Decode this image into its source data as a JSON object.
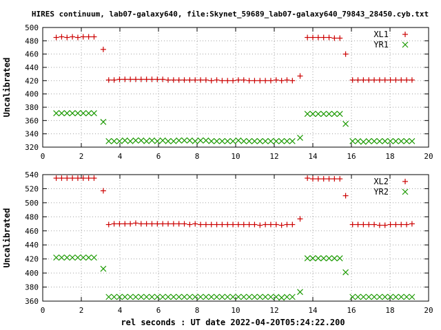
{
  "title": "HIRES continuum, lab07-galaxy640, file:Skynet_59689_lab07-galaxy640_79843_28450.cyb.txt",
  "xlabel": "rel seconds : UT date 2022-04-20T05:24:22.200",
  "colors": {
    "series1": "#cc0000",
    "series2": "#1a9900",
    "axis": "#000000",
    "grid": "#a0a0a0"
  },
  "chart_data": [
    {
      "type": "scatter",
      "ylabel": "Uncalibrated",
      "xlim": [
        0,
        20
      ],
      "ylim": [
        320,
        500
      ],
      "xticks": [
        0,
        2,
        4,
        6,
        8,
        10,
        12,
        14,
        16,
        18,
        20
      ],
      "yticks": [
        320,
        340,
        360,
        380,
        400,
        420,
        440,
        460,
        480,
        500
      ],
      "grid": true,
      "legend_position": "top-right",
      "x": [
        0.7,
        0.98,
        1.26,
        1.54,
        1.82,
        2.1,
        2.38,
        2.66,
        3.14,
        3.42,
        3.7,
        3.98,
        4.26,
        4.54,
        4.82,
        5.1,
        5.38,
        5.66,
        5.94,
        6.22,
        6.5,
        6.78,
        7.06,
        7.34,
        7.62,
        7.9,
        8.18,
        8.46,
        8.74,
        9.02,
        9.3,
        9.58,
        9.86,
        10.14,
        10.42,
        10.7,
        10.98,
        11.26,
        11.54,
        11.82,
        12.1,
        12.38,
        12.66,
        12.94,
        13.34,
        13.72,
        14.0,
        14.28,
        14.56,
        14.84,
        15.12,
        15.4,
        15.7,
        16.06,
        16.34,
        16.62,
        16.9,
        17.18,
        17.46,
        17.74,
        18.02,
        18.3,
        18.58,
        18.86,
        19.14
      ],
      "series": [
        {
          "name": "XL1",
          "marker": "plus",
          "values": [
            485,
            486,
            485,
            486,
            485,
            486,
            486,
            486,
            467,
            421,
            421,
            422,
            422,
            422,
            422,
            422,
            422,
            422,
            422,
            422,
            421,
            421,
            421,
            421,
            421,
            421,
            421,
            421,
            420,
            421,
            420,
            420,
            420,
            421,
            421,
            420,
            420,
            420,
            420,
            420,
            421,
            420,
            421,
            420,
            427,
            485,
            485,
            485,
            485,
            485,
            484,
            484,
            460,
            421,
            421,
            421,
            421,
            421,
            421,
            421,
            421,
            421,
            421,
            421,
            421
          ]
        },
        {
          "name": "YR1",
          "marker": "cross",
          "values": [
            371,
            371,
            371,
            371,
            371,
            371,
            371,
            371,
            358,
            329,
            329,
            329,
            330,
            329,
            330,
            330,
            329,
            330,
            329,
            330,
            329,
            329,
            330,
            330,
            330,
            329,
            330,
            330,
            329,
            329,
            329,
            329,
            329,
            330,
            329,
            329,
            329,
            329,
            329,
            329,
            329,
            329,
            329,
            329,
            334,
            370,
            370,
            370,
            370,
            370,
            370,
            370,
            355,
            329,
            329,
            328,
            329,
            329,
            329,
            329,
            329,
            329,
            329,
            329,
            329
          ]
        }
      ]
    },
    {
      "type": "scatter",
      "ylabel": "Uncalibrated",
      "xlim": [
        0,
        20
      ],
      "ylim": [
        360,
        540
      ],
      "xticks": [
        0,
        2,
        4,
        6,
        8,
        10,
        12,
        14,
        16,
        18,
        20
      ],
      "yticks": [
        360,
        380,
        400,
        420,
        440,
        460,
        480,
        500,
        520,
        540
      ],
      "grid": true,
      "legend_position": "top-right",
      "x": [
        0.7,
        0.98,
        1.26,
        1.54,
        1.82,
        2.1,
        2.38,
        2.66,
        3.14,
        3.42,
        3.7,
        3.98,
        4.26,
        4.54,
        4.82,
        5.1,
        5.38,
        5.66,
        5.94,
        6.22,
        6.5,
        6.78,
        7.06,
        7.34,
        7.62,
        7.9,
        8.18,
        8.46,
        8.74,
        9.02,
        9.3,
        9.58,
        9.86,
        10.14,
        10.42,
        10.7,
        10.98,
        11.26,
        11.54,
        11.82,
        12.1,
        12.38,
        12.66,
        12.94,
        13.34,
        13.72,
        14.0,
        14.28,
        14.56,
        14.84,
        15.12,
        15.4,
        15.7,
        16.06,
        16.34,
        16.62,
        16.9,
        17.18,
        17.46,
        17.74,
        18.02,
        18.3,
        18.58,
        18.86,
        19.14
      ],
      "series": [
        {
          "name": "XL2",
          "marker": "plus",
          "values": [
            535,
            535,
            535,
            535,
            535,
            535,
            535,
            535,
            517,
            469,
            470,
            470,
            470,
            470,
            471,
            470,
            470,
            470,
            470,
            470,
            470,
            470,
            470,
            470,
            469,
            470,
            469,
            469,
            469,
            469,
            469,
            469,
            469,
            469,
            469,
            469,
            469,
            468,
            469,
            469,
            469,
            468,
            469,
            469,
            477,
            535,
            534,
            534,
            534,
            534,
            534,
            534,
            510,
            469,
            469,
            469,
            469,
            469,
            468,
            468,
            469,
            469,
            469,
            469,
            470
          ]
        },
        {
          "name": "YR2",
          "marker": "cross",
          "values": [
            422,
            422,
            422,
            422,
            422,
            422,
            422,
            422,
            406,
            366,
            366,
            366,
            366,
            366,
            366,
            366,
            366,
            366,
            366,
            366,
            366,
            366,
            366,
            366,
            366,
            366,
            366,
            366,
            366,
            366,
            366,
            366,
            366,
            366,
            366,
            366,
            366,
            366,
            366,
            366,
            366,
            365,
            366,
            366,
            373,
            421,
            421,
            421,
            421,
            421,
            421,
            421,
            401,
            366,
            366,
            366,
            366,
            366,
            366,
            366,
            366,
            366,
            366,
            366,
            366
          ]
        }
      ]
    }
  ]
}
